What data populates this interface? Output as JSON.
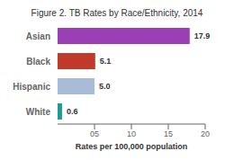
{
  "chart_data": {
    "type": "bar",
    "orientation": "horizontal",
    "title": "Figure 2. TB Rates by Race/Ethnicity, 2014",
    "categories": [
      "Asian",
      "Black",
      "Hispanic",
      "White"
    ],
    "values": [
      17.9,
      5.1,
      5.0,
      0.6
    ],
    "value_labels": [
      "17.9",
      "5.1",
      "5.0",
      "0.6"
    ],
    "data_labels": true,
    "colors": [
      "#9b3fb5",
      "#c0392b",
      "#a8bcd8",
      "#1a9e8f"
    ],
    "xlabel": "Rates per 100,000 population",
    "xlim": [
      0,
      20
    ],
    "xticks": [
      {
        "value": 5,
        "label": "05"
      },
      {
        "value": 10,
        "label": "10"
      },
      {
        "value": 15,
        "label": "15"
      },
      {
        "value": 20,
        "label": "20"
      }
    ],
    "grid": false
  }
}
